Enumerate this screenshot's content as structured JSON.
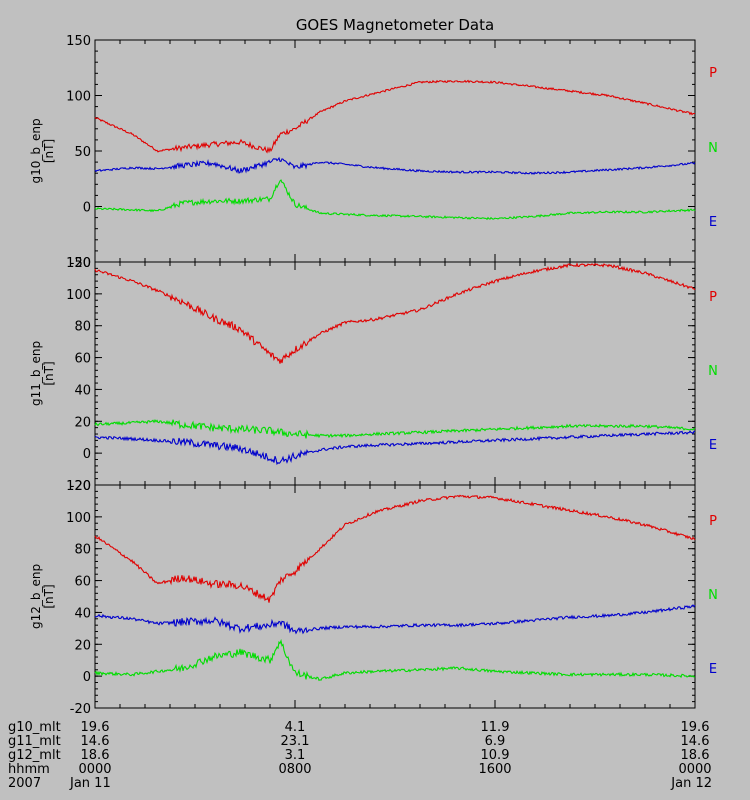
{
  "colors": {
    "background": "#c0c0c0",
    "axes": "#000000",
    "P": "#e00000",
    "N": "#00dd00",
    "E": "#0000cc"
  },
  "chart_data": [
    {
      "type": "line",
      "title": "GOES Magnetometer Data",
      "ylabel_top": "g10_b_enp",
      "ylabel_unit": "[nT]",
      "ylim": [
        -50,
        150
      ],
      "yticks": [
        -50,
        0,
        50,
        100,
        150
      ],
      "x": [
        0,
        1.5,
        2.5,
        3.5,
        4.7,
        5.8,
        7,
        7.4,
        8,
        9,
        10,
        11.2,
        13,
        14.5,
        16,
        17.5,
        19,
        20.5,
        22,
        24
      ],
      "series": [
        {
          "name": "P",
          "values": [
            80,
            65,
            50,
            53,
            56,
            58,
            50,
            65,
            70,
            85,
            95,
            102,
            112,
            113,
            112,
            108,
            104,
            100,
            93,
            83
          ]
        },
        {
          "name": "N",
          "values": [
            -2,
            -3,
            -4,
            3,
            5,
            5,
            7,
            25,
            2,
            -6,
            -7,
            -8,
            -9,
            -10,
            -11,
            -9,
            -6,
            -5,
            -5,
            -3
          ]
        },
        {
          "name": "E",
          "values": [
            32,
            35,
            34,
            37,
            39,
            32,
            40,
            43,
            35,
            40,
            38,
            35,
            32,
            31,
            31,
            30,
            31,
            33,
            35,
            39
          ]
        }
      ],
      "labels": [
        "P",
        "N",
        "E"
      ]
    },
    {
      "type": "line",
      "ylabel_top": "g11_b_enp",
      "ylabel_unit": "[nT]",
      "ylim": [
        -20,
        120
      ],
      "yticks": [
        -20,
        0,
        20,
        40,
        60,
        80,
        100,
        120
      ],
      "x": [
        0,
        1.5,
        2.5,
        3.5,
        4.7,
        5.8,
        7,
        7.4,
        8,
        9,
        10,
        11.2,
        13,
        14.5,
        16,
        17.5,
        19,
        20.5,
        22,
        24
      ],
      "series": [
        {
          "name": "P",
          "values": [
            115,
            108,
            102,
            95,
            85,
            78,
            62,
            58,
            65,
            75,
            82,
            84,
            90,
            100,
            108,
            114,
            118,
            118,
            113,
            103
          ]
        },
        {
          "name": "N",
          "values": [
            18,
            19,
            20,
            18,
            16,
            15,
            14,
            13,
            12,
            11,
            11,
            12,
            13,
            14,
            15,
            16,
            17,
            17,
            17,
            15
          ]
        },
        {
          "name": "E",
          "values": [
            10,
            9,
            8,
            7,
            5,
            3,
            -3,
            -5,
            -2,
            2,
            4,
            5,
            6,
            7,
            8,
            9,
            10,
            11,
            12,
            13
          ]
        }
      ],
      "labels": [
        "P",
        "N",
        "E"
      ]
    },
    {
      "type": "line",
      "ylabel_top": "g12_b_enp",
      "ylabel_unit": "[nT]",
      "ylim": [
        -20,
        120
      ],
      "yticks": [
        -20,
        0,
        20,
        40,
        60,
        80,
        100,
        120
      ],
      "x": [
        0,
        1.5,
        2.5,
        3.5,
        4.7,
        5.8,
        7,
        7.4,
        8,
        9,
        10,
        11.2,
        13,
        14.5,
        16,
        17.5,
        19,
        20.5,
        22,
        24
      ],
      "series": [
        {
          "name": "P",
          "values": [
            88,
            72,
            58,
            62,
            58,
            57,
            48,
            60,
            66,
            80,
            95,
            103,
            110,
            113,
            112,
            108,
            104,
            100,
            95,
            86
          ]
        },
        {
          "name": "N",
          "values": [
            2,
            1,
            3,
            5,
            12,
            15,
            10,
            22,
            2,
            -2,
            2,
            3,
            4,
            5,
            3,
            2,
            1,
            1,
            1,
            0
          ]
        },
        {
          "name": "E",
          "values": [
            38,
            36,
            33,
            34,
            35,
            30,
            32,
            34,
            28,
            30,
            31,
            31,
            32,
            32,
            33,
            35,
            37,
            38,
            40,
            44
          ]
        }
      ],
      "labels": [
        "P",
        "N",
        "E"
      ]
    }
  ],
  "footer": {
    "row_labels": [
      "g10_mlt",
      "g11_mlt",
      "g12_mlt",
      "hhmm",
      "2007"
    ],
    "columns": [
      {
        "values": [
          "19.6",
          "14.6",
          "18.6",
          "0000",
          "Jan 11"
        ]
      },
      {
        "values": [
          "4.1",
          "23.1",
          "3.1",
          "0800",
          ""
        ]
      },
      {
        "values": [
          "11.9",
          "6.9",
          "10.9",
          "1600",
          ""
        ]
      },
      {
        "values": [
          "19.6",
          "14.6",
          "18.6",
          "0000",
          "Jan 12"
        ]
      }
    ]
  }
}
